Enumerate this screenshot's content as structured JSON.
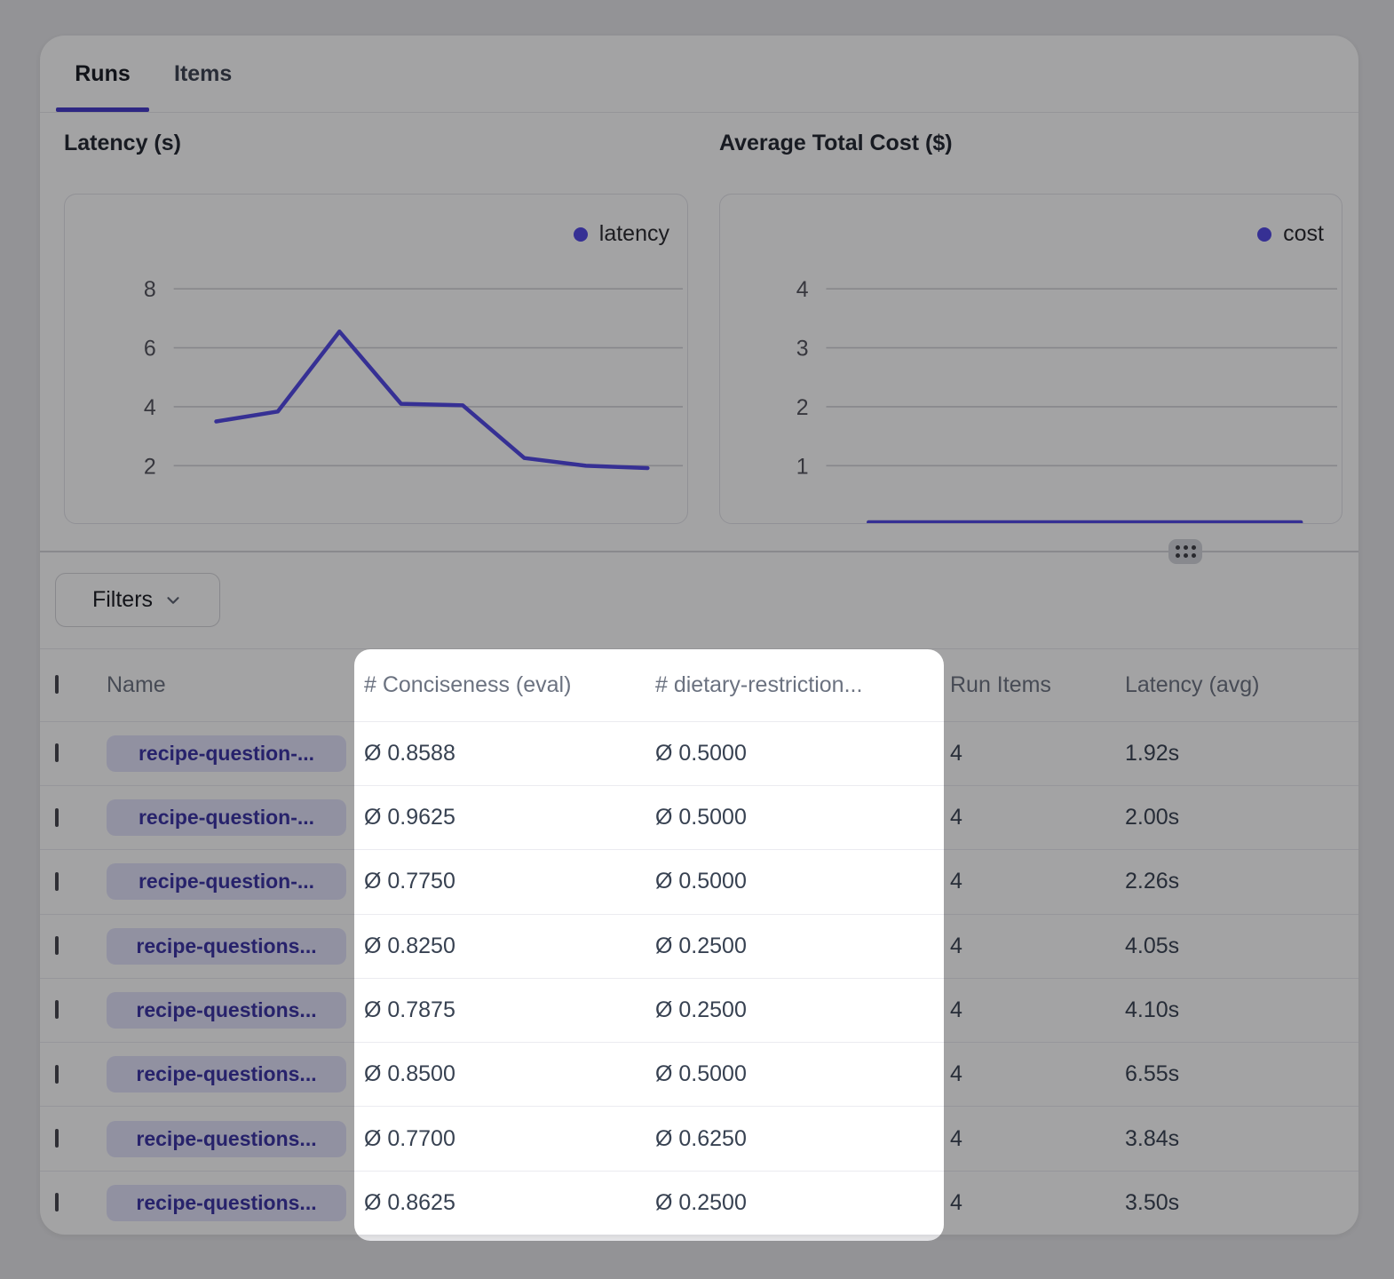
{
  "tabs": {
    "runs": "Runs",
    "items": "Items"
  },
  "charts": {
    "latency": {
      "title": "Latency (s)",
      "legend_label": "latency"
    },
    "cost": {
      "title": "Average Total Cost ($)",
      "legend_label": "cost"
    }
  },
  "chart_data": [
    {
      "type": "line",
      "title": "Latency (s)",
      "series": [
        {
          "name": "latency",
          "values": [
            3.5,
            3.84,
            6.55,
            4.1,
            4.05,
            2.26,
            2.0,
            1.92
          ]
        }
      ],
      "x_note": "8 runs, oldest to newest, x axis unlabeled",
      "yticks": [
        2,
        4,
        6,
        8
      ],
      "ylim": [
        0,
        9.3
      ],
      "grid": true,
      "legend_position": "top-right",
      "line_color": "#4f46e5"
    },
    {
      "type": "line",
      "title": "Average Total Cost ($)",
      "series": [
        {
          "name": "cost",
          "values": [
            0.02,
            0.02,
            0.02,
            0.02,
            0.02,
            0.02,
            0.02,
            0.02
          ]
        }
      ],
      "x_note": "8 runs, flat line at bottom of plot (cost ~ $0.02)",
      "yticks": [
        1,
        2,
        3,
        4
      ],
      "ylim": [
        0,
        4.6
      ],
      "grid": true,
      "legend_position": "top-right",
      "line_color": "#4f46e5"
    }
  ],
  "filters": {
    "label": "Filters"
  },
  "table": {
    "headers": {
      "name": "Name",
      "conciseness": "# Conciseness (eval)",
      "dietary": "# dietary-restriction...",
      "run_items": "Run Items",
      "latency": "Latency (avg)"
    },
    "rows": [
      {
        "name": "recipe-question-...",
        "conciseness": "Ø 0.8588",
        "dietary": "Ø 0.5000",
        "run_items": "4",
        "latency": "1.92s"
      },
      {
        "name": "recipe-question-...",
        "conciseness": "Ø 0.9625",
        "dietary": "Ø 0.5000",
        "run_items": "4",
        "latency": "2.00s"
      },
      {
        "name": "recipe-question-...",
        "conciseness": "Ø 0.7750",
        "dietary": "Ø 0.5000",
        "run_items": "4",
        "latency": "2.26s"
      },
      {
        "name": "recipe-questions...",
        "conciseness": "Ø 0.8250",
        "dietary": "Ø 0.2500",
        "run_items": "4",
        "latency": "4.05s"
      },
      {
        "name": "recipe-questions...",
        "conciseness": "Ø 0.7875",
        "dietary": "Ø 0.2500",
        "run_items": "4",
        "latency": "4.10s"
      },
      {
        "name": "recipe-questions...",
        "conciseness": "Ø 0.8500",
        "dietary": "Ø 0.5000",
        "run_items": "4",
        "latency": "6.55s"
      },
      {
        "name": "recipe-questions...",
        "conciseness": "Ø 0.7700",
        "dietary": "Ø 0.6250",
        "run_items": "4",
        "latency": "3.84s"
      },
      {
        "name": "recipe-questions...",
        "conciseness": "Ø 0.8625",
        "dietary": "Ø 0.2500",
        "run_items": "4",
        "latency": "3.50s"
      }
    ]
  },
  "colors": {
    "accent": "#4f46e5",
    "accent_dark": "#4338ca",
    "pill_bg": "#e2e3fb",
    "pill_text": "#3730a3",
    "overlay": "rgba(13,13,17,0.38)"
  }
}
